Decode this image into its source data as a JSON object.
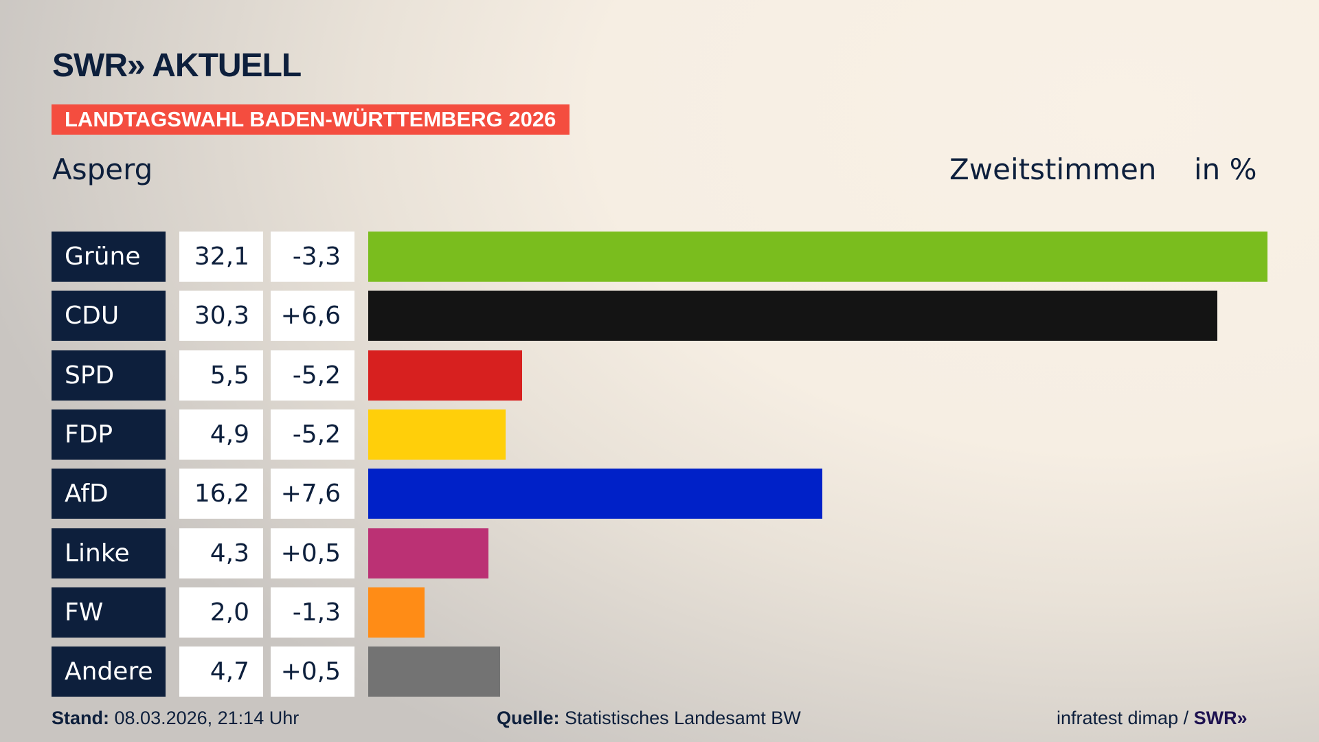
{
  "header": {
    "logo": "SWR» AKTUELL",
    "banner": "LANDTAGSWAHL BADEN-WÜRTTEMBERG 2026",
    "region": "Asperg",
    "measure": "Zweitstimmen",
    "unit": "in %"
  },
  "chart_data": {
    "type": "bar",
    "orientation": "horizontal",
    "categories": [
      "Grüne",
      "CDU",
      "SPD",
      "FDP",
      "AfD",
      "Linke",
      "FW",
      "Andere"
    ],
    "values": [
      32.1,
      30.3,
      5.5,
      4.9,
      16.2,
      4.3,
      2.0,
      4.7
    ],
    "value_labels": [
      "32,1",
      "30,3",
      "5,5",
      "4,9",
      "16,2",
      "4,3",
      "2,0",
      "4,7"
    ],
    "diff": [
      -3.3,
      6.6,
      -5.2,
      -5.2,
      7.6,
      0.5,
      -1.3,
      0.5
    ],
    "diff_labels": [
      "-3,3",
      "+6,6",
      "-5,2",
      "-5,2",
      "+7,6",
      "+0,5",
      "-1,3",
      "+0,5"
    ],
    "colors": [
      "#7abd1e",
      "#141414",
      "#d7201f",
      "#ffcf0a",
      "#0021c8",
      "#bb3174",
      "#ff8c16",
      "#737373"
    ]
  },
  "footer": {
    "stand_label": "Stand:",
    "stand": "08.03.2026, 21:14 Uhr",
    "quelle_label": "Quelle:",
    "quelle": "Statistisches Landesamt BW",
    "credit": "infratest dimap / ",
    "credit_logo": "SWR»"
  }
}
